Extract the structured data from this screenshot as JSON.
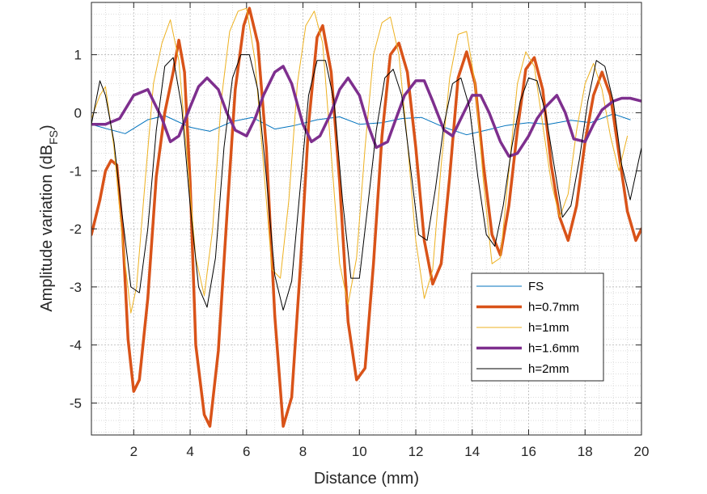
{
  "chart_data": {
    "type": "line",
    "title": "",
    "xlabel": "Distance (mm)",
    "ylabel": {
      "main": "Amplitude variation (dB",
      "sub": "FS",
      "close": ")"
    },
    "xlim": [
      0.5,
      20
    ],
    "ylim": [
      -5.55,
      1.9
    ],
    "xticks": [
      2,
      4,
      6,
      8,
      10,
      12,
      14,
      16,
      18,
      20
    ],
    "xtick_labels": [
      "2",
      "4",
      "6",
      "8",
      "10",
      "12",
      "14",
      "16",
      "18",
      "20"
    ],
    "yticks": [
      -5,
      -4,
      -3,
      -2,
      -1,
      0,
      1
    ],
    "ytick_labels": [
      "-5",
      "-4",
      "-3",
      "-2",
      "-1",
      "0",
      "1"
    ],
    "grid": true,
    "minor_grid": true,
    "legend_position": "lower-right",
    "series": [
      {
        "name": "FS",
        "color": "#0072BD",
        "linewidth": 1,
        "x": [
          0.5,
          1,
          1.7,
          2.5,
          3.1,
          4,
          4.7,
          5.5,
          6.2,
          7,
          7.7,
          8.5,
          9.3,
          10,
          10.8,
          11.5,
          12.2,
          13,
          13.8,
          14.5,
          15.2,
          16,
          16.7,
          17.5,
          18.2,
          19,
          19.6
        ],
        "y": [
          -0.2,
          -0.27,
          -0.36,
          -0.12,
          -0.05,
          -0.25,
          -0.32,
          -0.15,
          -0.08,
          -0.28,
          -0.22,
          -0.12,
          -0.07,
          -0.2,
          -0.17,
          -0.1,
          -0.08,
          -0.25,
          -0.38,
          -0.3,
          -0.22,
          -0.17,
          -0.2,
          -0.13,
          -0.17,
          -0.02,
          -0.12
        ]
      },
      {
        "name": "h=0.7mm",
        "color": "#D95319",
        "linewidth": 3.5,
        "x": [
          0.5,
          0.8,
          1,
          1.2,
          1.4,
          1.6,
          1.8,
          2,
          2.2,
          2.5,
          2.8,
          3.1,
          3.4,
          3.6,
          3.8,
          4,
          4.2,
          4.5,
          4.7,
          5,
          5.3,
          5.6,
          5.9,
          6.1,
          6.4,
          6.7,
          7,
          7.3,
          7.6,
          7.9,
          8.2,
          8.5,
          8.7,
          9,
          9.3,
          9.6,
          9.9,
          10.2,
          10.5,
          10.8,
          11.1,
          11.4,
          11.7,
          12,
          12.3,
          12.6,
          12.9,
          13.2,
          13.5,
          13.8,
          14.1,
          14.4,
          14.7,
          15,
          15.3,
          15.6,
          15.9,
          16.2,
          16.5,
          16.8,
          17.1,
          17.4,
          17.7,
          18,
          18.3,
          18.6,
          18.9,
          19.2,
          19.5,
          19.8,
          20
        ],
        "y": [
          -2.1,
          -1.5,
          -1.0,
          -0.82,
          -0.9,
          -2.0,
          -3.9,
          -4.8,
          -4.6,
          -3.2,
          -1.1,
          0.0,
          0.7,
          1.25,
          0.7,
          -1.2,
          -4.0,
          -5.2,
          -5.4,
          -4.1,
          -1.8,
          0.4,
          1.5,
          1.8,
          1.2,
          -0.6,
          -3.5,
          -5.4,
          -4.9,
          -2.7,
          -0.2,
          1.3,
          1.5,
          0.7,
          -1.2,
          -3.6,
          -4.6,
          -4.4,
          -2.6,
          -0.4,
          1.0,
          1.2,
          0.7,
          -0.6,
          -2.2,
          -2.95,
          -2.6,
          -1.1,
          0.6,
          1.05,
          0.5,
          -0.9,
          -2.1,
          -2.45,
          -1.6,
          -0.3,
          0.75,
          0.95,
          0.4,
          -0.9,
          -1.8,
          -2.2,
          -1.6,
          -0.5,
          0.3,
          0.7,
          0.3,
          -0.7,
          -1.7,
          -2.2,
          -2.0
        ]
      },
      {
        "name": "h=1mm",
        "color": "#EDB120",
        "linewidth": 1,
        "x": [
          0.5,
          0.8,
          1,
          1.3,
          1.6,
          1.9,
          2.1,
          2.4,
          2.7,
          3,
          3.3,
          3.6,
          3.9,
          4.2,
          4.5,
          4.8,
          5.1,
          5.4,
          5.7,
          6,
          6.3,
          6.6,
          6.9,
          7.2,
          7.5,
          7.8,
          8.1,
          8.4,
          8.7,
          9,
          9.3,
          9.6,
          9.9,
          10.2,
          10.5,
          10.8,
          11.1,
          11.4,
          11.7,
          12,
          12.3,
          12.6,
          12.9,
          13.2,
          13.5,
          13.8,
          14.1,
          14.4,
          14.7,
          15,
          15.3,
          15.6,
          15.9,
          16.2,
          16.5,
          16.8,
          17.1,
          17.4,
          17.7,
          18,
          18.3,
          18.6,
          18.9,
          19.2,
          19.5
        ],
        "y": [
          -0.1,
          0.3,
          0.45,
          -0.6,
          -2.2,
          -3.45,
          -3.0,
          -1.2,
          0.5,
          1.2,
          1.6,
          0.9,
          -0.8,
          -2.5,
          -3.15,
          -2.0,
          0.2,
          1.4,
          1.75,
          1.8,
          0.9,
          -0.9,
          -2.7,
          -2.85,
          -1.5,
          0.5,
          1.5,
          1.75,
          1.2,
          -0.7,
          -2.6,
          -3.3,
          -2.5,
          -0.6,
          1.0,
          1.55,
          1.65,
          1.0,
          -0.5,
          -2.2,
          -3.2,
          -2.7,
          -0.9,
          0.6,
          1.35,
          1.4,
          0.5,
          -1.2,
          -2.6,
          -2.5,
          -1.0,
          0.5,
          1.05,
          0.8,
          -0.2,
          -1.2,
          -1.8,
          -1.4,
          -0.3,
          0.5,
          0.85,
          0.4,
          -0.4,
          -1.0,
          -0.4
        ]
      },
      {
        "name": "h=1.6mm",
        "color": "#7E2F8E",
        "linewidth": 3.5,
        "x": [
          0.5,
          1,
          1.5,
          2,
          2.5,
          3,
          3.3,
          3.6,
          4,
          4.3,
          4.6,
          5,
          5.3,
          5.6,
          6,
          6.3,
          6.6,
          7,
          7.3,
          7.6,
          8,
          8.3,
          8.6,
          9,
          9.3,
          9.6,
          10,
          10.3,
          10.6,
          11,
          11.3,
          11.6,
          12,
          12.3,
          12.6,
          13,
          13.3,
          13.6,
          14,
          14.3,
          14.6,
          15,
          15.3,
          15.6,
          16,
          16.3,
          16.6,
          17,
          17.3,
          17.6,
          18,
          18.3,
          18.6,
          19,
          19.3,
          19.6,
          20
        ],
        "y": [
          -0.2,
          -0.2,
          -0.1,
          0.3,
          0.4,
          -0.1,
          -0.5,
          -0.4,
          0.1,
          0.45,
          0.6,
          0.4,
          0.0,
          -0.3,
          -0.4,
          -0.1,
          0.3,
          0.7,
          0.8,
          0.5,
          -0.2,
          -0.5,
          -0.4,
          0.0,
          0.4,
          0.6,
          0.3,
          -0.2,
          -0.6,
          -0.5,
          -0.1,
          0.3,
          0.55,
          0.55,
          0.2,
          -0.3,
          -0.4,
          -0.1,
          0.3,
          0.3,
          0.0,
          -0.5,
          -0.75,
          -0.7,
          -0.4,
          -0.1,
          0.1,
          0.3,
          0.0,
          -0.45,
          -0.5,
          -0.2,
          0.05,
          0.2,
          0.25,
          0.25,
          0.2
        ]
      },
      {
        "name": "h=2mm",
        "color": "#000000",
        "linewidth": 1,
        "x": [
          0.5,
          0.8,
          1,
          1.3,
          1.6,
          1.9,
          2.2,
          2.5,
          2.8,
          3.1,
          3.4,
          3.7,
          4,
          4.3,
          4.6,
          4.9,
          5.2,
          5.5,
          5.8,
          6.1,
          6.4,
          6.7,
          7,
          7.3,
          7.6,
          7.9,
          8.2,
          8.5,
          8.8,
          9.1,
          9.4,
          9.7,
          10,
          10.3,
          10.6,
          10.9,
          11.2,
          11.5,
          11.8,
          12.1,
          12.4,
          12.7,
          13,
          13.3,
          13.6,
          13.9,
          14.2,
          14.5,
          14.8,
          15.1,
          15.4,
          15.7,
          16,
          16.3,
          16.6,
          16.9,
          17.2,
          17.5,
          17.8,
          18.1,
          18.4,
          18.7,
          19,
          19.3,
          19.6,
          20
        ],
        "y": [
          -0.2,
          0.55,
          0.3,
          -0.5,
          -1.8,
          -3.0,
          -3.1,
          -2.0,
          -0.3,
          0.8,
          0.95,
          0.1,
          -1.6,
          -3.0,
          -3.35,
          -2.5,
          -0.6,
          0.6,
          1.0,
          1.0,
          0.4,
          -1.1,
          -2.8,
          -3.4,
          -2.9,
          -1.3,
          0.3,
          0.9,
          0.9,
          0.2,
          -1.5,
          -2.85,
          -2.85,
          -1.6,
          -0.3,
          0.6,
          0.75,
          0.3,
          -0.9,
          -2.1,
          -2.2,
          -1.3,
          -0.2,
          0.5,
          0.6,
          0.1,
          -1.1,
          -2.1,
          -2.3,
          -1.6,
          -0.6,
          0.2,
          0.6,
          0.55,
          0.0,
          -0.9,
          -1.8,
          -1.6,
          -0.8,
          0.2,
          0.9,
          0.8,
          0.2,
          -0.9,
          -1.5,
          -0.6
        ]
      }
    ]
  }
}
